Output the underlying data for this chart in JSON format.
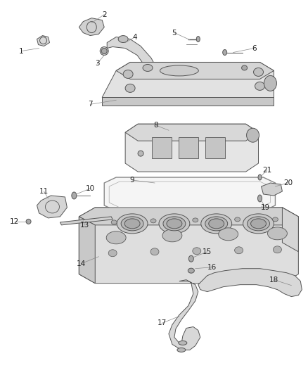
{
  "background_color": "#ffffff",
  "fig_width": 4.38,
  "fig_height": 5.33,
  "part_color": "#e8e8e8",
  "edge_color": "#555555",
  "dark_color": "#333333",
  "label_fontsize": 7.5,
  "label_color": "#222222",
  "lw": 0.7
}
